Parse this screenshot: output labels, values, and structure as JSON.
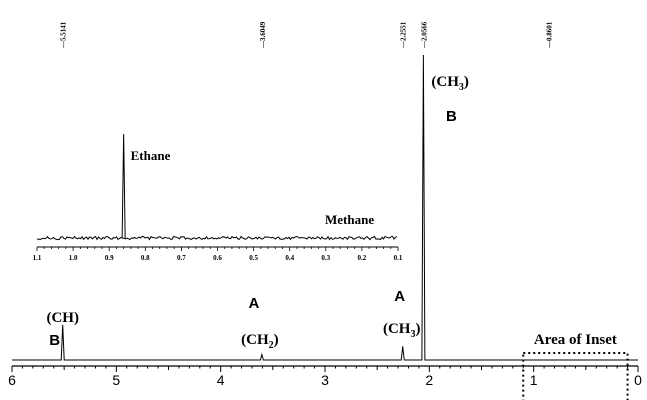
{
  "chart_data": [
    {
      "type": "line",
      "title": "",
      "xlabel": "",
      "ylabel": "",
      "xlim": [
        6,
        0
      ],
      "x_reversed": true,
      "x_ticks": [
        6,
        5,
        4,
        3,
        2,
        1,
        0
      ],
      "grid": false,
      "peak_reference_labels": [
        "5.5141",
        "3.6049",
        "2.2551",
        "2.0566",
        "0.8601"
      ],
      "peaks": [
        {
          "x": 5.514,
          "height": 0.115
        },
        {
          "x": 3.605,
          "height": 0.018
        },
        {
          "x": 2.255,
          "height": 0.045
        },
        {
          "x": 2.057,
          "height": 1.0
        }
      ],
      "annotations": [
        {
          "id": "b_left_group",
          "text": "(CH)",
          "letter": "B"
        },
        {
          "id": "a_ch2_group",
          "text": "(CH2)",
          "letter": "A"
        },
        {
          "id": "a_ch3_group",
          "text": "(CH3)",
          "letter": "A"
        },
        {
          "id": "b_ch3_group",
          "text": "(CH3)",
          "letter": "B"
        }
      ],
      "inset_region_label": "Area of Inset",
      "inset_region_x": [
        1.1,
        0.1
      ]
    },
    {
      "type": "line",
      "title": "",
      "xlim": [
        1.1,
        0.1
      ],
      "x_reversed": true,
      "x_ticks": [
        "1.1",
        "1.0",
        "0.9",
        "0.8",
        "0.7",
        "0.6",
        "0.5",
        "0.4",
        "0.3",
        "0.2",
        "0.1"
      ],
      "grid": false,
      "peaks": [
        {
          "x": 0.86,
          "height": 1.0,
          "label": "Ethane"
        },
        {
          "x": 0.23,
          "height": 0.03,
          "label": "Methane"
        }
      ]
    }
  ]
}
